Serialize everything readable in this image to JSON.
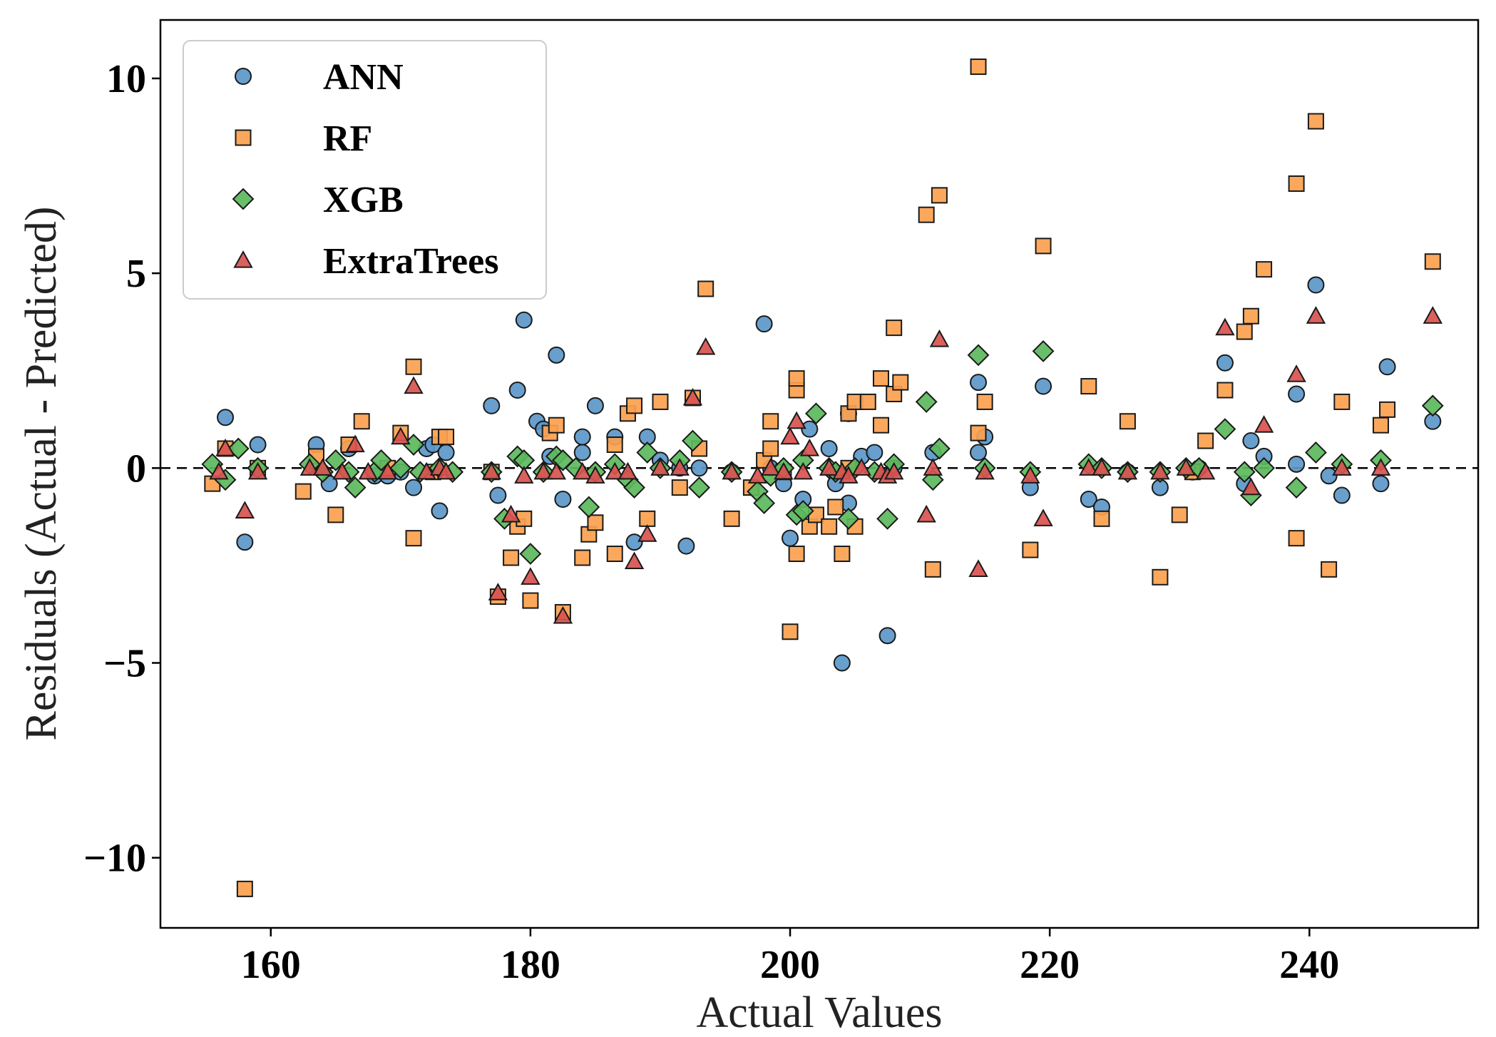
{
  "chart_data": {
    "type": "scatter",
    "title": "",
    "xlabel": "Actual Values",
    "ylabel": "Residuals (Actual - Predicted)",
    "xlim": [
      151.5,
      253
    ],
    "ylim": [
      -11.8,
      11.5
    ],
    "xticks": [
      160,
      180,
      200,
      220,
      240
    ],
    "yticks": [
      10,
      5,
      0,
      -5,
      -10
    ],
    "xtick_labels": [
      "160",
      "180",
      "200",
      "220",
      "240"
    ],
    "ytick_labels": [
      "10",
      "5",
      "0",
      "−5",
      "−10"
    ],
    "zero_line": true,
    "grid": false,
    "legend_position": "top-left",
    "series": [
      {
        "name": "ANN",
        "marker": "circle",
        "color": "#5b97c9",
        "points": [
          [
            156.5,
            1.3
          ],
          [
            158,
            -1.9
          ],
          [
            159,
            0.6
          ],
          [
            163.5,
            0.6
          ],
          [
            164.5,
            -0.4
          ],
          [
            166,
            0.5
          ],
          [
            168,
            -0.2
          ],
          [
            169,
            -0.2
          ],
          [
            170,
            -0.1
          ],
          [
            171,
            -0.5
          ],
          [
            172,
            0.5
          ],
          [
            172.5,
            0.6
          ],
          [
            173,
            -1.1
          ],
          [
            173.5,
            0.4
          ],
          [
            177,
            1.6
          ],
          [
            177.5,
            -0.7
          ],
          [
            179,
            2.0
          ],
          [
            179.5,
            3.8
          ],
          [
            180.5,
            1.2
          ],
          [
            181,
            1.0
          ],
          [
            181.5,
            0.3
          ],
          [
            182,
            2.9
          ],
          [
            182.5,
            -0.8
          ],
          [
            184,
            0.8
          ],
          [
            184,
            0.4
          ],
          [
            185,
            1.6
          ],
          [
            186.5,
            0.8
          ],
          [
            188,
            -1.9
          ],
          [
            189,
            0.8
          ],
          [
            190,
            0.2
          ],
          [
            191.5,
            0.0
          ],
          [
            192,
            -2.0
          ],
          [
            193,
            0.0
          ],
          [
            195.5,
            -0.1
          ],
          [
            198,
            3.7
          ],
          [
            198.5,
            0.0
          ],
          [
            199.5,
            -0.4
          ],
          [
            200,
            -1.8
          ],
          [
            201,
            -0.8
          ],
          [
            201.5,
            1.0
          ],
          [
            203,
            0.5
          ],
          [
            203.5,
            -0.4
          ],
          [
            204,
            -5.0
          ],
          [
            204.5,
            1.4
          ],
          [
            204.5,
            -0.9
          ],
          [
            205.5,
            0.3
          ],
          [
            206.5,
            0.4
          ],
          [
            207.5,
            -4.3
          ],
          [
            208,
            0.0
          ],
          [
            211,
            0.4
          ],
          [
            214.5,
            2.2
          ],
          [
            214.5,
            0.4
          ],
          [
            215,
            0.8
          ],
          [
            218.5,
            -0.5
          ],
          [
            219.5,
            2.1
          ],
          [
            223,
            -0.8
          ],
          [
            224,
            -1.0
          ],
          [
            226,
            -0.1
          ],
          [
            228.5,
            -0.5
          ],
          [
            231,
            -0.1
          ],
          [
            231.5,
            0.0
          ],
          [
            233.5,
            2.7
          ],
          [
            235,
            -0.4
          ],
          [
            235.5,
            0.7
          ],
          [
            236.5,
            0.3
          ],
          [
            239,
            1.9
          ],
          [
            239,
            0.1
          ],
          [
            240.5,
            4.7
          ],
          [
            241.5,
            -0.2
          ],
          [
            242.5,
            -0.7
          ],
          [
            245.5,
            -0.4
          ],
          [
            246,
            2.6
          ],
          [
            249.5,
            1.2
          ]
        ]
      },
      {
        "name": "RF",
        "marker": "square",
        "color": "#fba14f",
        "points": [
          [
            155.5,
            -0.4
          ],
          [
            156.5,
            0.5
          ],
          [
            158,
            -10.8
          ],
          [
            159,
            0.0
          ],
          [
            162.5,
            -0.6
          ],
          [
            163.5,
            0.3
          ],
          [
            165,
            -1.2
          ],
          [
            166,
            0.6
          ],
          [
            167,
            1.2
          ],
          [
            169,
            0.0
          ],
          [
            170,
            0.9
          ],
          [
            171,
            2.6
          ],
          [
            171,
            -1.8
          ],
          [
            172.5,
            -0.1
          ],
          [
            173,
            0.8
          ],
          [
            173.5,
            0.8
          ],
          [
            177,
            -0.1
          ],
          [
            177.5,
            -3.3
          ],
          [
            178.5,
            -2.3
          ],
          [
            179,
            -1.5
          ],
          [
            179.5,
            -1.3
          ],
          [
            180,
            -3.4
          ],
          [
            181.5,
            0.9
          ],
          [
            182,
            1.1
          ],
          [
            182.5,
            -3.7
          ],
          [
            184,
            -2.3
          ],
          [
            184.5,
            -1.7
          ],
          [
            185,
            -1.4
          ],
          [
            186.5,
            -2.2
          ],
          [
            186.5,
            0.6
          ],
          [
            187.5,
            1.4
          ],
          [
            188,
            1.6
          ],
          [
            189,
            -1.3
          ],
          [
            190,
            1.7
          ],
          [
            191.5,
            -0.5
          ],
          [
            192.5,
            1.8
          ],
          [
            193,
            0.5
          ],
          [
            193.5,
            4.6
          ],
          [
            195.5,
            -1.3
          ],
          [
            197,
            -0.5
          ],
          [
            198,
            0.2
          ],
          [
            198.5,
            1.2
          ],
          [
            198.5,
            0.5
          ],
          [
            199.5,
            -0.1
          ],
          [
            200,
            -4.2
          ],
          [
            200.5,
            2.0
          ],
          [
            200.5,
            2.3
          ],
          [
            200.5,
            -2.2
          ],
          [
            201.5,
            -1.5
          ],
          [
            202,
            -1.2
          ],
          [
            203,
            -1.5
          ],
          [
            203.5,
            -1.0
          ],
          [
            204,
            -2.2
          ],
          [
            204.5,
            0.0
          ],
          [
            204.5,
            1.4
          ],
          [
            205,
            -1.5
          ],
          [
            205,
            1.7
          ],
          [
            206,
            1.7
          ],
          [
            207,
            2.3
          ],
          [
            207,
            1.1
          ],
          [
            208,
            1.9
          ],
          [
            208,
            3.6
          ],
          [
            208.5,
            2.2
          ],
          [
            210.5,
            6.5
          ],
          [
            211,
            -2.6
          ],
          [
            211.5,
            7.0
          ],
          [
            214.5,
            10.3
          ],
          [
            214.5,
            0.9
          ],
          [
            215,
            1.7
          ],
          [
            218.5,
            -2.1
          ],
          [
            219.5,
            5.7
          ],
          [
            223,
            2.1
          ],
          [
            224,
            -1.3
          ],
          [
            226,
            1.2
          ],
          [
            228.5,
            -2.8
          ],
          [
            230,
            -1.2
          ],
          [
            231,
            -0.1
          ],
          [
            232,
            0.7
          ],
          [
            233.5,
            2.0
          ],
          [
            235,
            3.5
          ],
          [
            235.5,
            3.9
          ],
          [
            236.5,
            5.1
          ],
          [
            239,
            7.3
          ],
          [
            239,
            -1.8
          ],
          [
            240.5,
            8.9
          ],
          [
            241.5,
            -2.6
          ],
          [
            242.5,
            1.7
          ],
          [
            245.5,
            1.1
          ],
          [
            246,
            1.5
          ],
          [
            249.5,
            5.3
          ]
        ]
      },
      {
        "name": "XGB",
        "marker": "diamond",
        "color": "#5cb85c",
        "points": [
          [
            155.5,
            0.1
          ],
          [
            156.5,
            -0.3
          ],
          [
            157.5,
            0.5
          ],
          [
            159,
            0.0
          ],
          [
            163,
            0.1
          ],
          [
            164,
            -0.1
          ],
          [
            165,
            0.2
          ],
          [
            166,
            -0.1
          ],
          [
            166.5,
            -0.5
          ],
          [
            168,
            -0.1
          ],
          [
            168.5,
            0.2
          ],
          [
            170,
            0.0
          ],
          [
            171,
            0.6
          ],
          [
            171.5,
            -0.1
          ],
          [
            173,
            0.0
          ],
          [
            174,
            -0.1
          ],
          [
            177,
            -0.1
          ],
          [
            178,
            -1.3
          ],
          [
            179,
            0.3
          ],
          [
            179.5,
            0.2
          ],
          [
            180,
            -2.2
          ],
          [
            181,
            -0.1
          ],
          [
            182,
            0.3
          ],
          [
            182.5,
            0.2
          ],
          [
            183.5,
            0.0
          ],
          [
            184.5,
            -1.0
          ],
          [
            185,
            -0.1
          ],
          [
            186.5,
            0.1
          ],
          [
            187.5,
            -0.3
          ],
          [
            188,
            -0.5
          ],
          [
            189,
            0.4
          ],
          [
            190,
            0.0
          ],
          [
            191.5,
            0.2
          ],
          [
            192.5,
            0.7
          ],
          [
            193,
            -0.5
          ],
          [
            195.5,
            -0.1
          ],
          [
            197.5,
            -0.6
          ],
          [
            198,
            -0.9
          ],
          [
            198.5,
            -0.2
          ],
          [
            199.5,
            0.0
          ],
          [
            200.5,
            -1.2
          ],
          [
            201,
            -1.1
          ],
          [
            201,
            0.2
          ],
          [
            202,
            1.4
          ],
          [
            203,
            0.0
          ],
          [
            203.5,
            -0.1
          ],
          [
            204.5,
            -1.3
          ],
          [
            205,
            0.0
          ],
          [
            206.5,
            -0.1
          ],
          [
            207.5,
            -1.3
          ],
          [
            208,
            0.1
          ],
          [
            210.5,
            1.7
          ],
          [
            211,
            -0.3
          ],
          [
            211.5,
            0.5
          ],
          [
            214.5,
            2.9
          ],
          [
            215,
            0.0
          ],
          [
            218.5,
            -0.1
          ],
          [
            219.5,
            3.0
          ],
          [
            223,
            0.1
          ],
          [
            224,
            0.0
          ],
          [
            226,
            -0.1
          ],
          [
            228.5,
            -0.1
          ],
          [
            230.5,
            0.0
          ],
          [
            231.5,
            0.0
          ],
          [
            233.5,
            1.0
          ],
          [
            235,
            -0.1
          ],
          [
            235.5,
            -0.7
          ],
          [
            236.5,
            0.0
          ],
          [
            239,
            -0.5
          ],
          [
            240.5,
            0.4
          ],
          [
            242.5,
            0.1
          ],
          [
            245.5,
            0.2
          ],
          [
            249.5,
            1.6
          ]
        ]
      },
      {
        "name": "ExtraTrees",
        "marker": "triangle",
        "color": "#d9534f",
        "points": [
          [
            156,
            -0.1
          ],
          [
            156.5,
            0.5
          ],
          [
            158,
            -1.1
          ],
          [
            159,
            -0.1
          ],
          [
            163,
            0.0
          ],
          [
            164,
            0.0
          ],
          [
            165.5,
            -0.1
          ],
          [
            166.5,
            0.6
          ],
          [
            167.5,
            -0.1
          ],
          [
            169,
            -0.1
          ],
          [
            170,
            0.8
          ],
          [
            171,
            2.1
          ],
          [
            172,
            -0.1
          ],
          [
            173,
            0.0
          ],
          [
            173.5,
            -0.1
          ],
          [
            177,
            -0.1
          ],
          [
            177.5,
            -3.2
          ],
          [
            178.5,
            -1.2
          ],
          [
            179.5,
            -0.2
          ],
          [
            180,
            -2.8
          ],
          [
            181,
            -0.1
          ],
          [
            182,
            -0.1
          ],
          [
            182.5,
            -3.8
          ],
          [
            184,
            -0.1
          ],
          [
            185,
            -0.2
          ],
          [
            186.5,
            -0.1
          ],
          [
            187.5,
            -0.1
          ],
          [
            188,
            -2.4
          ],
          [
            189,
            -1.7
          ],
          [
            190,
            0.0
          ],
          [
            191.5,
            0.0
          ],
          [
            192.5,
            1.8
          ],
          [
            193.5,
            3.1
          ],
          [
            195.5,
            -0.1
          ],
          [
            197.5,
            -0.2
          ],
          [
            198.5,
            0.0
          ],
          [
            199.5,
            -0.1
          ],
          [
            200,
            0.8
          ],
          [
            200.5,
            1.2
          ],
          [
            201,
            -0.1
          ],
          [
            201.5,
            0.5
          ],
          [
            203,
            0.0
          ],
          [
            204,
            -0.1
          ],
          [
            204.5,
            -0.2
          ],
          [
            205.5,
            0.0
          ],
          [
            207,
            -0.1
          ],
          [
            207.5,
            -0.2
          ],
          [
            208,
            -0.1
          ],
          [
            210.5,
            -1.2
          ],
          [
            211,
            0.0
          ],
          [
            211.5,
            3.3
          ],
          [
            214.5,
            -2.6
          ],
          [
            215,
            -0.1
          ],
          [
            218.5,
            -0.2
          ],
          [
            219.5,
            -1.3
          ],
          [
            223,
            0.0
          ],
          [
            224,
            0.0
          ],
          [
            226,
            -0.1
          ],
          [
            228.5,
            -0.1
          ],
          [
            230.5,
            0.0
          ],
          [
            232,
            -0.1
          ],
          [
            233.5,
            3.6
          ],
          [
            235.5,
            -0.5
          ],
          [
            236.5,
            1.1
          ],
          [
            239,
            2.4
          ],
          [
            240.5,
            3.9
          ],
          [
            242.5,
            0.0
          ],
          [
            245.5,
            0.0
          ],
          [
            249.5,
            3.9
          ]
        ]
      }
    ]
  }
}
